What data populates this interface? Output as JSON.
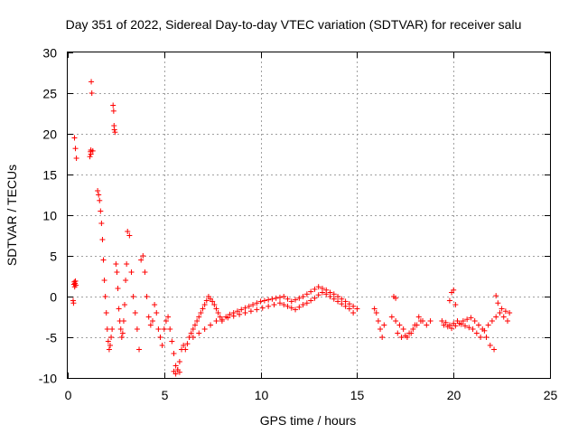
{
  "chart_data": {
    "type": "scatter",
    "title": "Day 351 of 2022, Sidereal Day-to-day VTEC variation (SDTVAR) for receiver salu",
    "xlabel": "GPS time / hours",
    "ylabel": "SDTVAR / TECUs",
    "xlim": [
      0,
      25
    ],
    "ylim": [
      -10,
      30
    ],
    "xticks": [
      0,
      5,
      10,
      15,
      20,
      25
    ],
    "yticks": [
      -10,
      -5,
      0,
      5,
      10,
      15,
      20,
      25,
      30
    ],
    "grid": true,
    "marker": "+",
    "color": "#ff0000",
    "series": [
      {
        "name": "SDTVAR",
        "x": [
          0.28,
          0.3,
          0.32,
          0.34,
          0.36,
          0.38,
          0.4,
          0.42,
          0.35,
          0.4,
          0.45,
          1.15,
          1.18,
          1.2,
          1.22,
          1.25,
          1.2,
          1.3,
          1.55,
          1.6,
          1.65,
          1.7,
          1.75,
          1.8,
          1.85,
          1.9,
          1.95,
          2.0,
          2.05,
          2.1,
          2.15,
          2.2,
          2.25,
          2.3,
          2.35,
          2.38,
          2.4,
          2.42,
          2.45,
          2.5,
          2.55,
          2.6,
          2.65,
          2.7,
          2.75,
          2.8,
          2.85,
          2.9,
          2.95,
          3.0,
          3.05,
          3.1,
          3.2,
          3.3,
          3.4,
          3.5,
          3.6,
          3.7,
          3.8,
          3.9,
          4.0,
          4.1,
          4.2,
          4.3,
          4.4,
          4.5,
          4.6,
          4.7,
          4.8,
          4.9,
          5.0,
          5.1,
          5.2,
          5.3,
          5.4,
          5.5,
          5.6,
          5.7,
          5.8,
          5.9,
          6.0,
          5.5,
          5.6,
          5.7,
          5.8,
          6.1,
          6.2,
          6.3,
          6.4,
          6.5,
          6.6,
          6.7,
          6.8,
          6.9,
          7.0,
          7.1,
          7.2,
          7.3,
          7.4,
          7.5,
          7.6,
          7.7,
          7.8,
          7.9,
          8.0,
          6.5,
          6.8,
          7.1,
          7.4,
          7.7,
          8.0,
          8.3,
          8.6,
          8.9,
          9.2,
          9.5,
          9.8,
          10.1,
          10.4,
          10.7,
          11.0,
          8.2,
          8.4,
          8.6,
          8.8,
          9.0,
          9.2,
          9.4,
          9.6,
          9.8,
          10.0,
          10.2,
          10.4,
          10.6,
          10.8,
          11.0,
          11.2,
          11.4,
          11.6,
          11.8,
          12.0,
          12.2,
          12.4,
          12.6,
          12.8,
          13.0,
          13.2,
          13.4,
          13.6,
          13.8,
          14.0,
          14.2,
          14.4,
          14.6,
          14.8,
          15.0,
          11.2,
          11.4,
          11.6,
          11.8,
          12.0,
          12.2,
          12.4,
          12.6,
          12.8,
          13.0,
          13.2,
          13.4,
          13.6,
          13.8,
          14.0,
          14.2,
          14.4,
          14.6,
          14.8,
          15.9,
          16.0,
          16.1,
          16.2,
          16.3,
          16.4,
          16.9,
          17.0,
          16.8,
          17.0,
          17.2,
          17.4,
          17.6,
          17.8,
          18.0,
          18.2,
          18.4,
          18.6,
          18.8,
          17.1,
          17.3,
          17.5,
          17.7,
          17.9,
          18.1,
          18.3,
          19.4,
          19.6,
          19.8,
          20.0,
          20.2,
          20.4,
          20.6,
          20.8,
          21.0,
          21.2,
          21.4,
          21.6,
          21.8,
          22.0,
          22.2,
          22.4,
          22.6,
          22.8,
          19.5,
          19.7,
          19.9,
          20.1,
          20.3,
          20.5,
          20.7,
          20.9,
          21.1,
          21.3,
          21.5,
          21.7,
          21.9,
          22.1,
          19.8,
          19.9,
          20.0,
          20.1,
          22.2,
          22.3,
          22.5,
          22.7,
          22.9
        ],
        "y": [
          -0.5,
          -0.8,
          1.5,
          1.8,
          1.2,
          1.6,
          1.9,
          1.4,
          19.5,
          18.2,
          17.0,
          17.2,
          17.8,
          18.0,
          26.4,
          25.0,
          17.5,
          17.9,
          13.0,
          12.5,
          11.8,
          10.5,
          9.0,
          7.0,
          4.5,
          2.0,
          0.0,
          -2.0,
          -4.0,
          -5.5,
          -6.5,
          -6.0,
          -5.0,
          -4.0,
          23.5,
          22.8,
          21.0,
          20.5,
          20.2,
          4.0,
          3.0,
          1.0,
          -1.5,
          -3.0,
          -4.0,
          -5.0,
          -4.5,
          -3.0,
          -1.0,
          2.0,
          4.0,
          8.0,
          7.5,
          3.0,
          0.0,
          -2.0,
          -4.0,
          -6.5,
          4.5,
          5.0,
          3.0,
          0.0,
          -2.5,
          -3.5,
          -3.0,
          -1.0,
          -2.0,
          -4.0,
          -5.0,
          -6.0,
          -4.0,
          -3.0,
          -2.5,
          -4.0,
          -5.5,
          -7.0,
          -8.5,
          -9.0,
          -8.0,
          -6.5,
          -6.0,
          -9.2,
          -9.5,
          -9.0,
          -9.3,
          -6.5,
          -5.8,
          -5.0,
          -4.5,
          -4.0,
          -3.5,
          -3.0,
          -2.5,
          -2.0,
          -1.5,
          -1.0,
          -0.5,
          0.0,
          -0.3,
          -0.6,
          -1.0,
          -1.5,
          -2.0,
          -2.5,
          -3.0,
          -5.0,
          -4.5,
          -4.0,
          -3.5,
          -3.0,
          -2.8,
          -2.6,
          -2.4,
          -2.2,
          -2.0,
          -1.8,
          -1.6,
          -1.4,
          -1.2,
          -1.0,
          -0.8,
          -2.5,
          -2.2,
          -2.0,
          -1.8,
          -1.6,
          -1.4,
          -1.2,
          -1.0,
          -0.8,
          -0.6,
          -0.5,
          -0.4,
          -0.3,
          -0.2,
          -0.1,
          0.0,
          -0.3,
          -0.6,
          -0.4,
          -0.2,
          0.0,
          0.3,
          0.6,
          0.9,
          1.2,
          1.0,
          0.8,
          0.5,
          0.3,
          0.0,
          -0.3,
          -0.6,
          -0.9,
          -1.2,
          -1.5,
          -1.0,
          -1.2,
          -1.4,
          -1.6,
          -1.3,
          -1.0,
          -0.8,
          -0.5,
          -0.2,
          0.2,
          0.5,
          0.3,
          0.0,
          -0.3,
          -0.6,
          -0.9,
          -1.2,
          -1.5,
          -2.0,
          -1.5,
          -2.0,
          -3.0,
          -4.0,
          -5.0,
          -3.5,
          0.0,
          -0.2,
          -2.5,
          -3.0,
          -3.5,
          -4.0,
          -5.0,
          -4.5,
          -3.5,
          -2.5,
          -3.0,
          -3.5,
          -3.0,
          -4.5,
          -5.0,
          -4.8,
          -4.5,
          -4.0,
          -3.5,
          -3.0,
          -3.0,
          -3.2,
          -3.5,
          -3.3,
          -3.0,
          -3.4,
          -3.6,
          -3.8,
          -4.0,
          -4.5,
          -5.0,
          -4.2,
          -3.5,
          -3.0,
          -2.5,
          -2.0,
          -2.5,
          -3.0,
          -3.5,
          -3.7,
          -3.9,
          -3.6,
          -3.3,
          -3.0,
          -2.8,
          -2.6,
          -3.0,
          -3.5,
          -4.0,
          -5.0,
          -6.0,
          -6.5,
          -0.5,
          0.5,
          0.8,
          -1.0,
          0.1,
          -0.8,
          -1.5,
          -1.8,
          -2.0
        ]
      }
    ]
  }
}
